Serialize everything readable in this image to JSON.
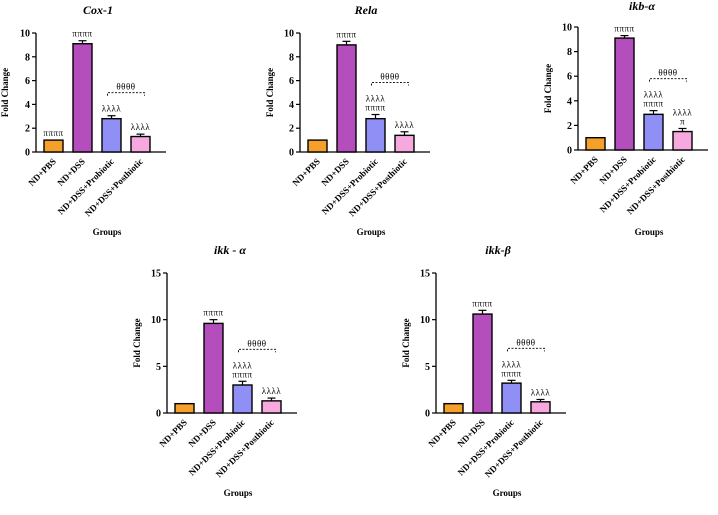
{
  "colors": {
    "bars": [
      "#f5a02a",
      "#b44ebc",
      "#8f8ff5",
      "#f6a8df"
    ],
    "axis": "#000000",
    "errorbar": "#000000"
  },
  "chart_data": [
    {
      "type": "bar",
      "title": "Cox-1",
      "ylabel": "Fold Change",
      "xlabel": "Groups",
      "categories": [
        "ND+PBS",
        "ND+DSS",
        "ND+DSS+Probiotic",
        "ND+DSS+Posthiotic"
      ],
      "values": [
        1.0,
        9.1,
        2.8,
        1.3
      ],
      "errors": [
        0.0,
        0.25,
        0.25,
        0.2
      ],
      "ylim": [
        0,
        10
      ],
      "yticks": [
        "0",
        "2",
        "4",
        "6",
        "8",
        "10"
      ],
      "annotations": [
        [
          "ππππ"
        ],
        [
          "ππππ"
        ],
        [
          "λλλλ"
        ],
        [
          "λλλλ"
        ]
      ],
      "bracket": {
        "from": 2,
        "to": 3,
        "label": "θθθθ"
      }
    },
    {
      "type": "bar",
      "title": "Rela",
      "ylabel": "Fold Change",
      "xlabel": "Groups",
      "categories": [
        "ND+PBS",
        "ND+DSS",
        "ND+DSS+Probiotic",
        "ND+DSS+Posthiotic"
      ],
      "values": [
        1.0,
        9.0,
        2.8,
        1.4
      ],
      "errors": [
        0.0,
        0.3,
        0.35,
        0.3
      ],
      "ylim": [
        0,
        10
      ],
      "yticks": [
        "0",
        "2",
        "4",
        "6",
        "8",
        "10"
      ],
      "annotations": [
        [],
        [
          "ππππ"
        ],
        [
          "λλλλ",
          "ππππ"
        ],
        [
          "λλλλ"
        ]
      ],
      "bracket": {
        "from": 2,
        "to": 3,
        "label": "θθθθ"
      }
    },
    {
      "type": "bar",
      "title": "ikb-α",
      "ylabel": "Fold Change",
      "xlabel": "Groups",
      "categories": [
        "ND+PBS",
        "ND+DSS",
        "ND+DSS+Probiotic",
        "ND+DSS+Posthiotic"
      ],
      "values": [
        1.0,
        9.1,
        2.9,
        1.5
      ],
      "errors": [
        0.0,
        0.2,
        0.3,
        0.25
      ],
      "ylim": [
        0,
        10
      ],
      "yticks": [
        "0",
        "2",
        "4",
        "6",
        "8",
        "10"
      ],
      "annotations": [
        [],
        [
          "ππππ"
        ],
        [
          "λλλλ",
          "ππππ"
        ],
        [
          "λλλλ",
          "π"
        ]
      ],
      "bracket": {
        "from": 2,
        "to": 3,
        "label": "θθθθ"
      }
    },
    {
      "type": "bar",
      "title": "ikk - α",
      "ylabel": "Fold Change",
      "xlabel": "Groups",
      "categories": [
        "ND+PBS",
        "ND+DSS",
        "ND+DSS+Probiotic",
        "ND+DSS+Posthiotic"
      ],
      "values": [
        1.0,
        9.6,
        3.0,
        1.3
      ],
      "errors": [
        0.0,
        0.4,
        0.4,
        0.3
      ],
      "ylim": [
        0,
        15
      ],
      "yticks": [
        "0",
        "5",
        "10",
        "15"
      ],
      "annotations": [
        [],
        [
          "ππππ"
        ],
        [
          "λλλλ",
          "ππππ"
        ],
        [
          "λλλλ"
        ]
      ],
      "bracket": {
        "from": 2,
        "to": 3,
        "label": "θθθθ"
      }
    },
    {
      "type": "bar",
      "title": "ikk-β",
      "ylabel": "Fold Change",
      "xlabel": "Groups",
      "categories": [
        "ND+PBS",
        "ND+DSS",
        "ND+DSS+Probiotic",
        "ND+DSS+Posthiotic"
      ],
      "values": [
        1.0,
        10.6,
        3.2,
        1.2
      ],
      "errors": [
        0.0,
        0.4,
        0.3,
        0.25
      ],
      "ylim": [
        0,
        15
      ],
      "yticks": [
        "0",
        "5",
        "10",
        "15"
      ],
      "annotations": [
        [],
        [
          "ππππ"
        ],
        [
          "λλλλ",
          "ππππ"
        ],
        [
          "λλλλ"
        ]
      ],
      "bracket": {
        "from": 2,
        "to": 3,
        "label": "θθθθ"
      }
    }
  ]
}
